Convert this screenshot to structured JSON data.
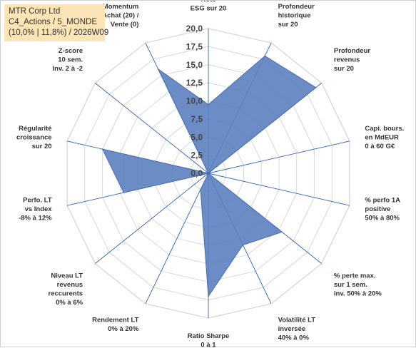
{
  "header": {
    "company": "MTR Corp Ltd",
    "portfolio": "C4_Actions / 5_MONDE",
    "summary": "(10,0% | 11,8%) / 2026W09"
  },
  "colors": {
    "fill": "#5b7fbf",
    "stroke": "#4a6fb0",
    "grid": "#d9d9d9",
    "spoke": "#2f62c0",
    "title_bg": "#fbe5b6"
  },
  "chart_data": {
    "type": "radar",
    "rmin": 0,
    "rmax": 20,
    "ticks": [
      "0,0",
      "2,5",
      "5,0",
      "7,5",
      "10,0",
      "12,5",
      "15,0",
      "17,5",
      "20,0"
    ],
    "grid": true,
    "categories": [
      [
        "Note",
        "ESG sur 20"
      ],
      [
        "Profondeur",
        "historique",
        "sur 20"
      ],
      [
        "Profondeur",
        "revenus",
        "sur 20"
      ],
      [
        "Capi. bours.",
        "en MdEUR",
        "0 à 60 G€"
      ],
      [
        "% perfo 1A",
        "positive",
        "50% à 80%"
      ],
      [
        "% perte max.",
        "sur 1 sem.",
        "inv. 50% à 20%"
      ],
      [
        "Volatilité LT",
        "inversée",
        "40% à 0%"
      ],
      [
        "Ratio Sharpe",
        "0 à 1"
      ],
      [
        "Rendement LT",
        "0% à 20%"
      ],
      [
        "Niveau LT",
        "revenus",
        "reccurents",
        "0% à 6%"
      ],
      [
        "Perfo. LT",
        "vs Index",
        "-8% à 12%"
      ],
      [
        "Régularité",
        "croissance",
        "sur 20"
      ],
      [
        "Z-score",
        "10 sem.",
        "Inv. 2 à -2"
      ],
      [
        "Momentum",
        "Achat (20) /",
        "Vente (0)"
      ]
    ],
    "values": [
      9.5,
      18.0,
      19.0,
      0.0,
      0.0,
      13.0,
      11.0,
      17.0,
      2.5,
      0.0,
      12.0,
      15.0,
      0.0,
      16.0
    ]
  }
}
